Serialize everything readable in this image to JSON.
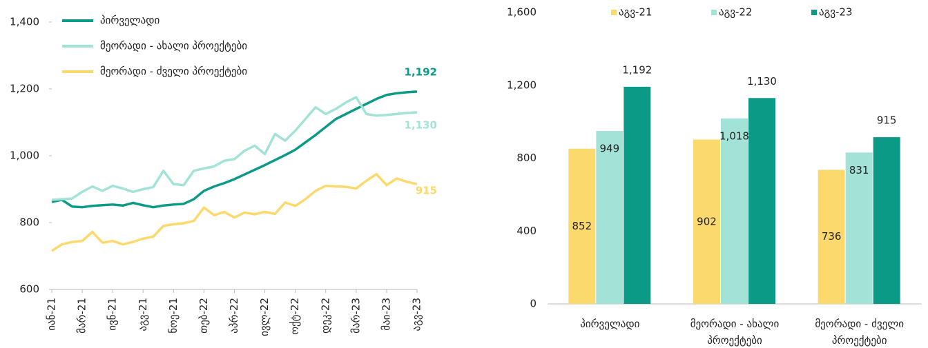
{
  "chart_data": [
    {
      "type": "line",
      "categories": [
        "იან-21",
        null,
        null,
        "მარ-21",
        null,
        null,
        "ივნ-21",
        null,
        null,
        "აგვ-21",
        null,
        null,
        "ნოე-21",
        null,
        null,
        "თებ-22",
        null,
        null,
        "აპრ-22",
        null,
        null,
        "ივლ-22",
        null,
        null,
        "ოქტ-22",
        null,
        null,
        "დეკ-22",
        null,
        null,
        "მარ-23",
        null,
        null,
        "მაი-23",
        null,
        null,
        "აგვ-23"
      ],
      "series": [
        {
          "name": "პირველადი",
          "color": "#0a9a86",
          "end_label": "1,192",
          "values": [
            862,
            868,
            848,
            846,
            850,
            852,
            854,
            851,
            859,
            852,
            846,
            851,
            854,
            856,
            870,
            895,
            908,
            918,
            930,
            944,
            958,
            972,
            987,
            1002,
            1018,
            1040,
            1062,
            1086,
            1110,
            1125,
            1140,
            1155,
            1170,
            1182,
            1187,
            1190,
            1192
          ]
        },
        {
          "name": "მეორადი - ახალი პროექტები",
          "color": "#a3e2d7",
          "end_label": "1,130",
          "values": [
            868,
            870,
            872,
            892,
            908,
            895,
            910,
            902,
            892,
            900,
            906,
            955,
            915,
            912,
            955,
            962,
            968,
            985,
            990,
            1015,
            1030,
            1005,
            1065,
            1045,
            1075,
            1110,
            1145,
            1125,
            1140,
            1160,
            1175,
            1125,
            1120,
            1122,
            1125,
            1128,
            1130
          ]
        },
        {
          "name": "მეორადი - ძველი პროექტები",
          "color": "#fcd96c",
          "end_label": "915",
          "values": [
            715,
            735,
            742,
            745,
            772,
            740,
            745,
            735,
            742,
            752,
            758,
            790,
            795,
            798,
            805,
            845,
            822,
            832,
            815,
            830,
            825,
            832,
            826,
            860,
            850,
            870,
            895,
            910,
            908,
            907,
            902,
            925,
            945,
            912,
            932,
            922,
            915
          ]
        }
      ],
      "ylim": [
        600,
        1400
      ],
      "yticks": [
        600,
        800,
        {
          "value": 1000,
          "label": "1,000"
        },
        {
          "value": 1200,
          "label": "1,200"
        },
        {
          "value": 1400,
          "label": "1,400"
        }
      ],
      "legend": "top-left"
    },
    {
      "type": "bar",
      "categories": [
        "პირველადი",
        "მეორადი - ახალი პროექტები",
        "მეორადი - ძველი პროექტები"
      ],
      "series": [
        {
          "name": "აგვ-21",
          "color": "#fcd96c",
          "values": [
            852,
            902,
            736
          ],
          "value_labels": [
            "852",
            "902",
            "736"
          ]
        },
        {
          "name": "აგვ-22",
          "color": "#a3e2d7",
          "values": [
            949,
            1018,
            831
          ],
          "value_labels": [
            "949",
            "1,018",
            "831"
          ]
        },
        {
          "name": "აგვ-23",
          "color": "#0a9a86",
          "values": [
            1192,
            1130,
            915
          ],
          "value_labels": [
            "1,192",
            "1,130",
            "915"
          ]
        }
      ],
      "ylim": [
        0,
        1600
      ],
      "yticks": [
        0,
        400,
        800,
        {
          "value": 1200,
          "label": "1,200"
        },
        {
          "value": 1600,
          "label": "1,600"
        }
      ],
      "legend": "top"
    }
  ]
}
